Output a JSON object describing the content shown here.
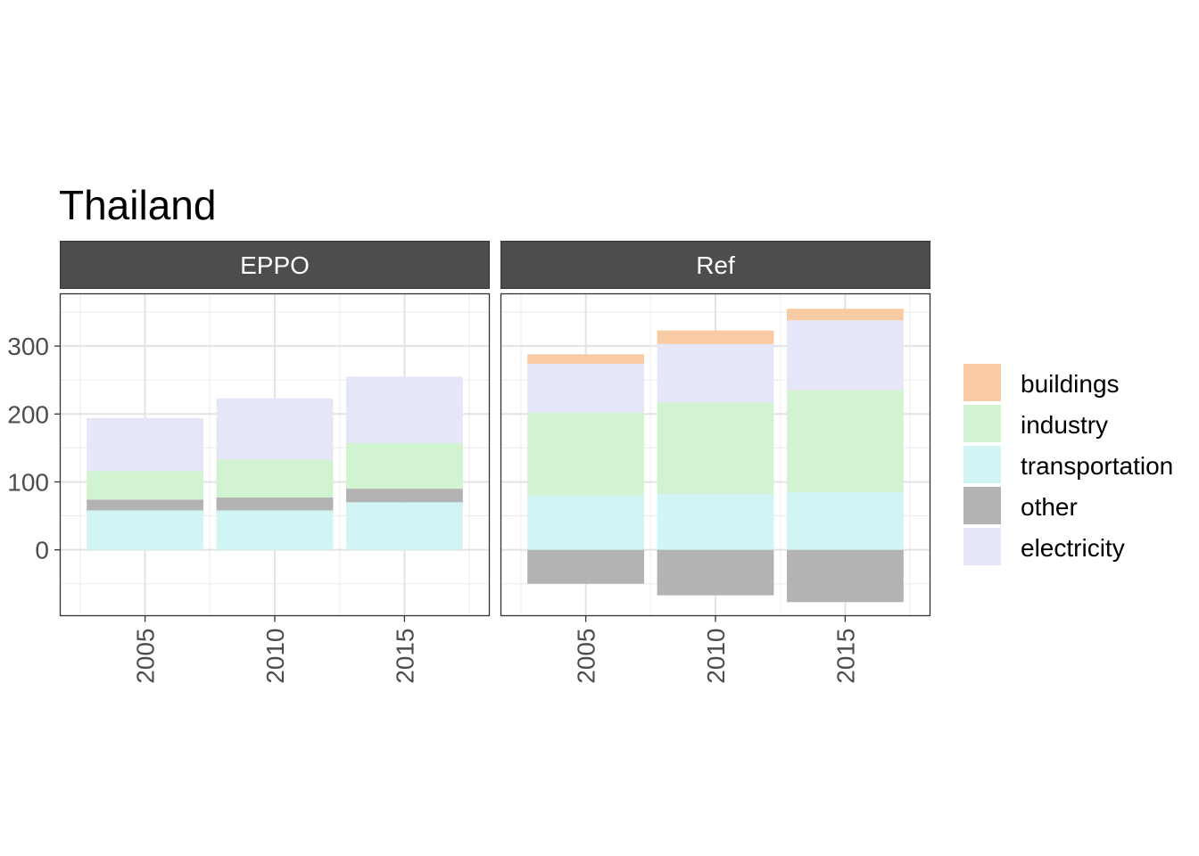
{
  "chart_data": {
    "type": "bar",
    "stacked": true,
    "title": "Thailand",
    "xlabel": "",
    "ylabel": "",
    "ylim": [
      -97,
      377
    ],
    "yticks": [
      0,
      100,
      200,
      300
    ],
    "categories": [
      "2005",
      "2010",
      "2015"
    ],
    "grid": true,
    "legend_position": "right",
    "legend": [
      {
        "name": "buildings",
        "color": "#F9CBA4"
      },
      {
        "name": "industry",
        "color": "#D1F3D2"
      },
      {
        "name": "transportation",
        "color": "#D1F5F5"
      },
      {
        "name": "other",
        "color": "#B3B3B3"
      },
      {
        "name": "electricity",
        "color": "#E6E6F9"
      }
    ],
    "stack_order": [
      "transportation",
      "other",
      "industry",
      "electricity",
      "buildings"
    ],
    "panels": [
      {
        "label": "EPPO",
        "series": [
          {
            "name": "transportation",
            "values": [
              58,
              58,
              70
            ]
          },
          {
            "name": "other",
            "values": [
              16,
              19,
              20
            ]
          },
          {
            "name": "industry",
            "values": [
              42,
              56,
              67
            ]
          },
          {
            "name": "electricity",
            "values": [
              78,
              90,
              98
            ]
          },
          {
            "name": "buildings",
            "values": [
              0,
              0,
              0
            ]
          }
        ]
      },
      {
        "label": "Ref",
        "series": [
          {
            "name": "transportation",
            "values": [
              80,
              82,
              85
            ]
          },
          {
            "name": "other",
            "values": [
              -50,
              -67,
              -77
            ]
          },
          {
            "name": "industry",
            "values": [
              122,
              135,
              150
            ]
          },
          {
            "name": "electricity",
            "values": [
              72,
              86,
              103
            ]
          },
          {
            "name": "buildings",
            "values": [
              14,
              20,
              17
            ]
          }
        ]
      }
    ]
  }
}
